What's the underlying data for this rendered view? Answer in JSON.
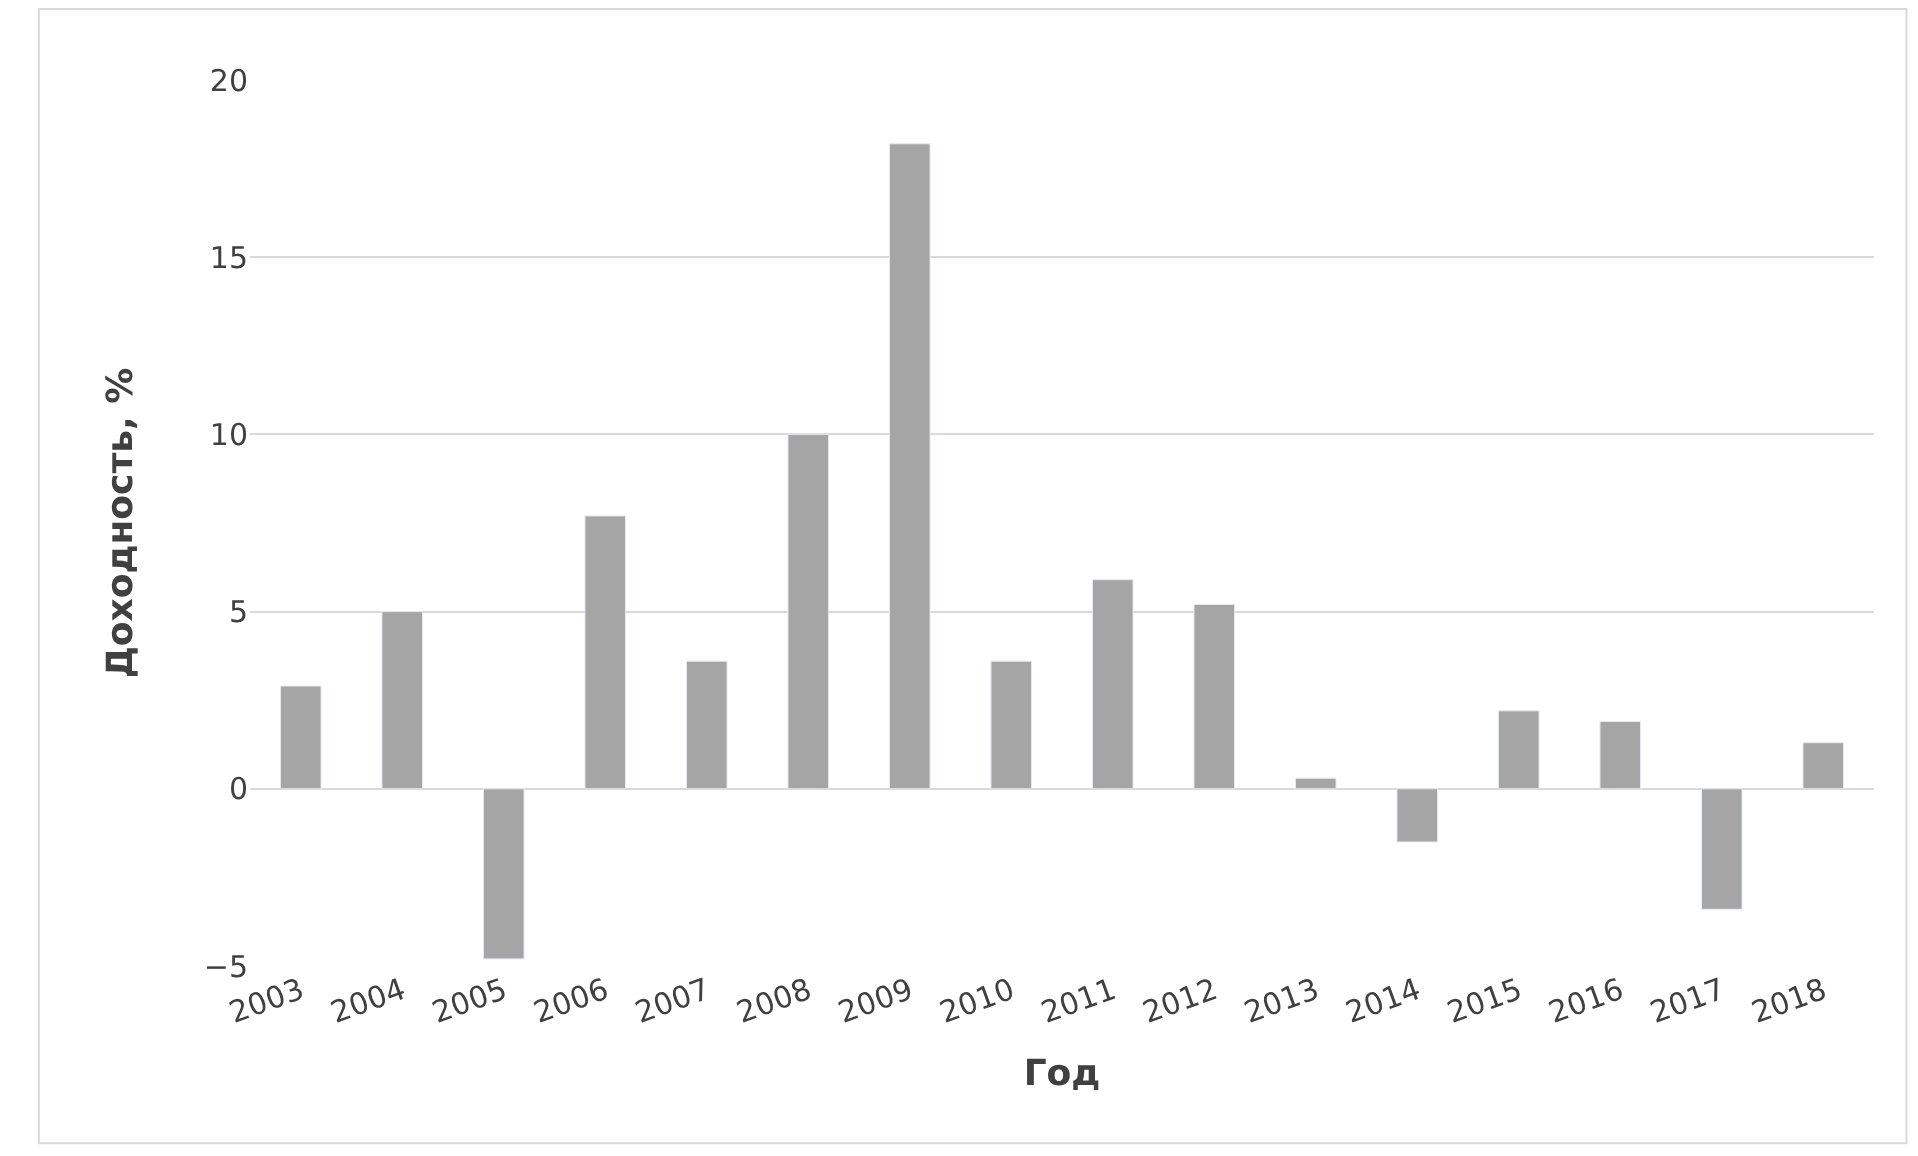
{
  "chart_data": {
    "type": "bar",
    "xlabel": "Год",
    "ylabel": "Доходность, %",
    "categories": [
      "2003",
      "2004",
      "2005",
      "2006",
      "2007",
      "2008",
      "2009",
      "2010",
      "2011",
      "2012",
      "2013",
      "2014",
      "2015",
      "2016",
      "2017",
      "2018"
    ],
    "values": [
      2.9,
      5.0,
      -4.8,
      7.7,
      3.6,
      10.0,
      18.2,
      3.6,
      5.9,
      5.2,
      0.3,
      -1.5,
      2.2,
      1.9,
      -3.4,
      1.3
    ],
    "color": "#a5a5a5",
    "ylim": [
      -5,
      20
    ],
    "yticks": [
      -5,
      0,
      5,
      10,
      15,
      20
    ],
    "grid": "y",
    "legend": false
  }
}
